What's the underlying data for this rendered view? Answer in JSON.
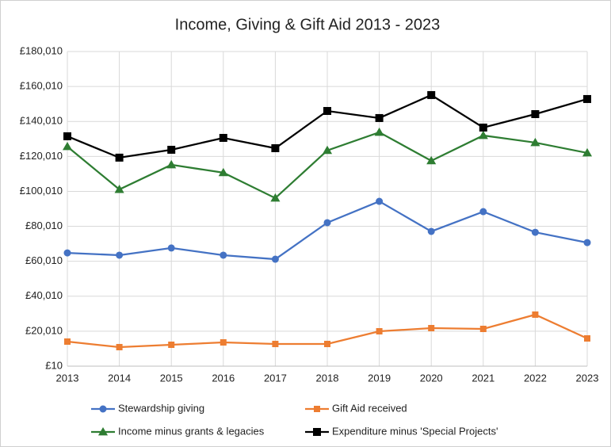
{
  "chart_data": {
    "type": "line",
    "title": "Income, Giving & Gift Aid 2013 - 2023",
    "x": [
      2013,
      2014,
      2015,
      2016,
      2017,
      2018,
      2019,
      2020,
      2021,
      2022,
      2023
    ],
    "xlim": [
      2013,
      2023
    ],
    "xticks": [
      2013,
      2014,
      2015,
      2016,
      2017,
      2018,
      2019,
      2020,
      2021,
      2022,
      2023
    ],
    "ylim": [
      10,
      180010
    ],
    "yticks": [
      {
        "value": 10,
        "label": "£10"
      },
      {
        "value": 20010,
        "label": "£20,010"
      },
      {
        "value": 40010,
        "label": "£40,010"
      },
      {
        "value": 60010,
        "label": "£60,010"
      },
      {
        "value": 80010,
        "label": "£80,010"
      },
      {
        "value": 100010,
        "label": "£100,010"
      },
      {
        "value": 120010,
        "label": "£120,010"
      },
      {
        "value": 140010,
        "label": "£140,010"
      },
      {
        "value": 160010,
        "label": "£160,010"
      },
      {
        "value": 180010,
        "label": "£180,010"
      }
    ],
    "grid": true,
    "series": [
      {
        "name": "Stewardship giving",
        "color": "#4472c4",
        "marker": "circle",
        "values": [
          64800,
          63500,
          67600,
          63500,
          61200,
          82100,
          94300,
          77100,
          88400,
          76600,
          70700
        ]
      },
      {
        "name": "Gift Aid received",
        "color": "#ed7d31",
        "marker": "square",
        "values": [
          14070,
          10900,
          12250,
          13600,
          12700,
          12700,
          19960,
          21770,
          21320,
          29490,
          15880
        ]
      },
      {
        "name": "Income minus grants & legacies",
        "color": "#2e7d32",
        "marker": "triangle",
        "values": [
          125600,
          101100,
          115200,
          110700,
          96150,
          123400,
          133800,
          117500,
          131970,
          127900,
          122000
        ]
      },
      {
        "name": "Expenditure minus 'Special Projects'",
        "color": "#000000",
        "marker": "square",
        "values": [
          131530,
          119300,
          123800,
          130600,
          124700,
          146000,
          141950,
          155100,
          136500,
          144200,
          152830
        ]
      }
    ]
  }
}
